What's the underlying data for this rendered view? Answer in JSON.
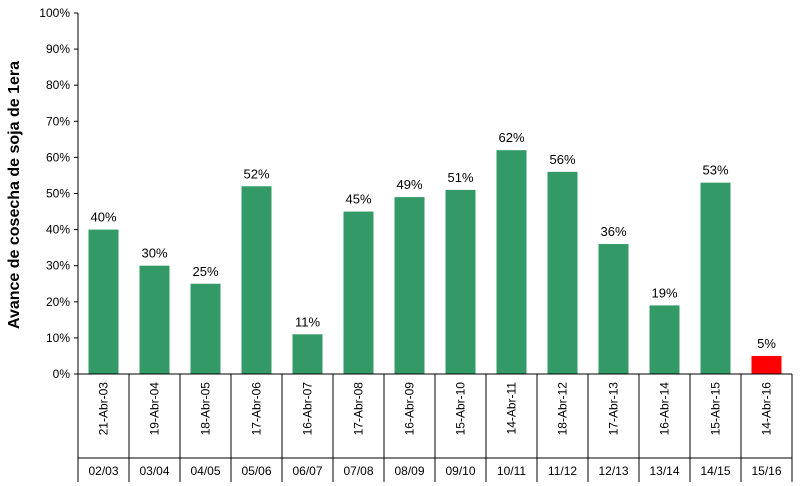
{
  "chart_data": {
    "type": "bar",
    "ylabel": "Avance de cosecha de soja de 1era",
    "ylim": [
      0,
      100
    ],
    "y_ticks": [
      "0%",
      "10%",
      "20%",
      "30%",
      "40%",
      "50%",
      "60%",
      "70%",
      "80%",
      "90%",
      "100%"
    ],
    "categories": [
      "21-Abr-03",
      "19-Abr-04",
      "18-Abr-05",
      "17-Abr-06",
      "16-Abr-07",
      "17-Abr-08",
      "16-Abr-09",
      "15-Abr-10",
      "14-Abr-11",
      "18-Abr-12",
      "17-Abr-13",
      "16-Abr-14",
      "15-Abr-15",
      "14-Abr-16"
    ],
    "seasons": [
      "02/03",
      "03/04",
      "04/05",
      "05/06",
      "06/07",
      "07/08",
      "08/09",
      "09/10",
      "10/11",
      "11/12",
      "12/13",
      "13/14",
      "14/15",
      "15/16"
    ],
    "values": [
      40,
      30,
      25,
      52,
      11,
      45,
      49,
      51,
      62,
      56,
      36,
      19,
      53,
      5
    ],
    "data_labels": [
      "40%",
      "30%",
      "25%",
      "52%",
      "11%",
      "45%",
      "49%",
      "51%",
      "62%",
      "56%",
      "36%",
      "19%",
      "53%",
      "5%"
    ],
    "colors": {
      "default": "#339966",
      "highlight": "#ff0000"
    },
    "highlight_index": 13,
    "grid": false,
    "legend": "none"
  }
}
